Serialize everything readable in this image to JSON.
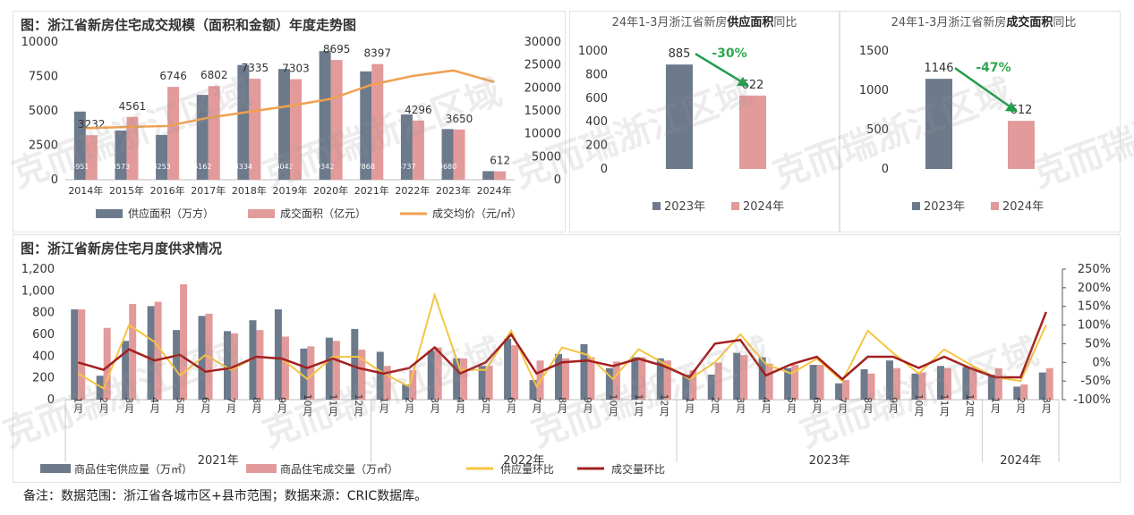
{
  "colors": {
    "supply": "#6d7a8c",
    "deal": "#e39a9a",
    "price": "#f0a050",
    "supply_ratio": "#f5c542",
    "deal_ratio": "#a3201f",
    "arrow": "#1d9d48",
    "drop": "#2ea84f"
  },
  "chart_data": [
    {
      "type": "bar",
      "title": "图：浙江省新房住宅成交规模（面积和金额）年度走势图",
      "categories": [
        "2014年",
        "2015年",
        "2016年",
        "2017年",
        "2018年",
        "2019年",
        "2020年",
        "2021年",
        "2022年",
        "2023年",
        "2024年"
      ],
      "series": [
        {
          "name": "供应面积（万方）",
          "axis": "left",
          "values": [
            4951,
            3573,
            3253,
            6162,
            8334,
            8042,
            9342,
            7868,
            4737,
            3680,
            622
          ]
        },
        {
          "name": "成交面积（亿元）",
          "axis": "left",
          "values": [
            3232,
            4561,
            6746,
            6802,
            7335,
            7303,
            8695,
            8397,
            4296,
            3650,
            612
          ]
        },
        {
          "name": "成交均价（元/㎡）",
          "axis": "right",
          "type": "line",
          "values": [
            11200,
            11500,
            11700,
            13500,
            14800,
            16100,
            17600,
            20700,
            22600,
            23800,
            21300
          ]
        }
      ],
      "supply_labels": [
        "4951",
        "3573",
        "3253",
        "6162",
        "8334",
        "8042",
        "9342",
        "7868",
        "4737",
        "3680",
        "622"
      ],
      "deal_labels": [
        "3232",
        "4561",
        "6746",
        "6802",
        "7335",
        "7303",
        "8695",
        "8397",
        "4296",
        "3650",
        "612"
      ],
      "ylim": [
        0,
        10000
      ],
      "yticks": [
        "0",
        "2500",
        "5000",
        "7500",
        "10000"
      ],
      "y2lim": [
        0,
        30000
      ],
      "y2ticks": [
        "0",
        "5000",
        "10000",
        "15000",
        "20000",
        "25000",
        "30000"
      ],
      "legend": [
        "供应面积（万方）",
        "成交面积（亿元）",
        "成交均价（元/㎡）"
      ]
    },
    {
      "type": "bar",
      "title_prefix": "24年1-3月浙江省新房",
      "title_bold": "供应面积",
      "title_suffix": "同比",
      "categories": [
        "2023年",
        "2024年"
      ],
      "values": [
        885,
        622
      ],
      "value_labels": [
        "885",
        "622"
      ],
      "ylim": [
        0,
        1000
      ],
      "yticks": [
        "0",
        "200",
        "400",
        "600",
        "800",
        "1000"
      ],
      "change": "-30%",
      "legend": [
        "2023年",
        "2024年"
      ]
    },
    {
      "type": "bar",
      "title_prefix": "24年1-3月浙江省新房",
      "title_bold": "成交面积",
      "title_suffix": "同比",
      "categories": [
        "2023年",
        "2024年"
      ],
      "values": [
        1146,
        612
      ],
      "value_labels": [
        "1146",
        "612"
      ],
      "ylim": [
        0,
        1500
      ],
      "yticks": [
        "0",
        "500",
        "1000",
        "1500"
      ],
      "change": "-47%",
      "legend": [
        "2023年",
        "2024年"
      ]
    },
    {
      "type": "bar",
      "title": "图：浙江省新房住宅月度供求情况",
      "months": [
        "1月",
        "2月",
        "3月",
        "4月",
        "5月",
        "6月",
        "7月",
        "8月",
        "9月",
        "10月",
        "11月",
        "12月",
        "1月",
        "2月",
        "3月",
        "4月",
        "5月",
        "6月",
        "7月",
        "8月",
        "9月",
        "10月",
        "11月",
        "12月",
        "1月",
        "2月",
        "3月",
        "4月",
        "5月",
        "6月",
        "7月",
        "8月",
        "9月",
        "10月",
        "11月",
        "12月",
        "1月",
        "2月",
        "3月"
      ],
      "years": [
        "2021年",
        "2022年",
        "2023年",
        "2024年"
      ],
      "series": [
        {
          "name": "商品住宅供应量（万㎡）",
          "axis": "left",
          "values": [
            830,
            220,
            540,
            860,
            640,
            770,
            630,
            730,
            830,
            470,
            570,
            650,
            440,
            140,
            450,
            380,
            310,
            560,
            180,
            420,
            510,
            290,
            390,
            380,
            230,
            230,
            430,
            390,
            290,
            320,
            150,
            280,
            360,
            240,
            310,
            300,
            230,
            120,
            250
          ]
        },
        {
          "name": "商品住宅成交量（万㎡）",
          "axis": "left",
          "values": [
            830,
            660,
            880,
            900,
            1060,
            790,
            610,
            640,
            580,
            490,
            540,
            460,
            310,
            270,
            480,
            380,
            310,
            500,
            360,
            380,
            390,
            350,
            390,
            360,
            270,
            340,
            410,
            330,
            320,
            320,
            180,
            240,
            290,
            250,
            290,
            300,
            290,
            140,
            290
          ]
        },
        {
          "name": "供应量环比",
          "axis": "right",
          "type": "line",
          "values": [
            -30,
            -70,
            100,
            55,
            -35,
            20,
            -20,
            15,
            10,
            -45,
            15,
            15,
            -30,
            -65,
            180,
            -20,
            -20,
            85,
            -65,
            40,
            20,
            -45,
            35,
            -3,
            -45,
            0,
            75,
            -5,
            -30,
            10,
            -50,
            85,
            25,
            -30,
            35,
            -5,
            -40,
            -50,
            100
          ]
        },
        {
          "name": "成交量环比",
          "axis": "right",
          "type": "line",
          "values": [
            0,
            -20,
            35,
            5,
            20,
            -25,
            -15,
            15,
            10,
            -15,
            10,
            -15,
            -30,
            -15,
            40,
            -30,
            0,
            75,
            -30,
            0,
            5,
            -10,
            10,
            -10,
            -40,
            50,
            60,
            -35,
            -5,
            15,
            -45,
            15,
            15,
            -15,
            15,
            -15,
            -40,
            -40,
            135
          ]
        }
      ],
      "ylim": [
        0,
        1200
      ],
      "yticks": [
        "0",
        "200",
        "400",
        "600",
        "800",
        "1,000",
        "1,200"
      ],
      "y2lim": [
        -100,
        250
      ],
      "y2ticks": [
        "-100%",
        "-50%",
        "0%",
        "50%",
        "100%",
        "150%",
        "200%",
        "250%"
      ],
      "legend": [
        "商品住宅供应量（万㎡）",
        "商品住宅成交量（万㎡）",
        "供应量环比",
        "成交量环比"
      ]
    }
  ],
  "watermark": "克而瑞浙江区域",
  "footnote": "备注：数据范围：浙江省各城市区+县市范围；数据来源：CRIC数据库。"
}
